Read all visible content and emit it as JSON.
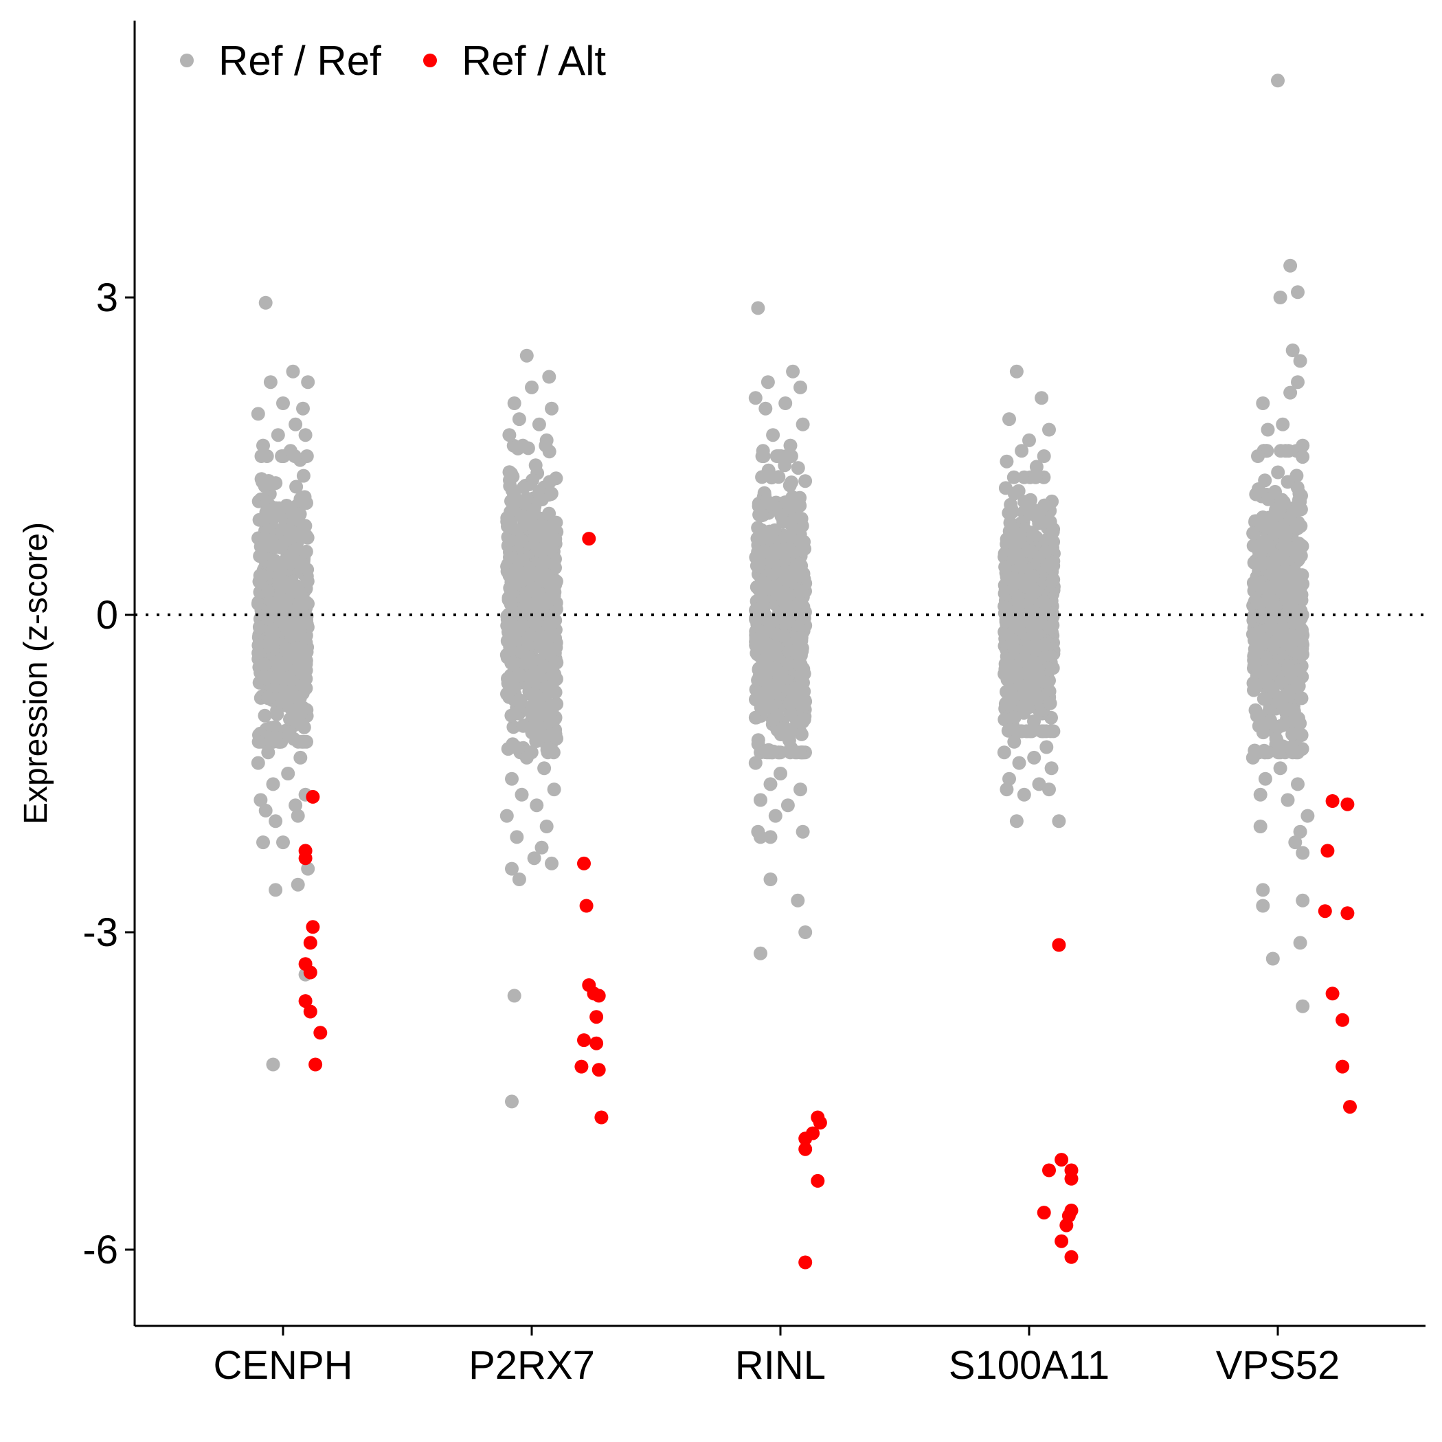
{
  "chart_data": {
    "type": "scatter",
    "subtype": "jittered strip plot",
    "title": "",
    "xlabel": "",
    "ylabel": "Expression (z-score)",
    "categories": [
      "CENPH",
      "P2RX7",
      "RINL",
      "S100A11",
      "VPS52"
    ],
    "ylim": [
      -6.6,
      5.7
    ],
    "yticks": [
      3,
      0,
      -3,
      -6
    ],
    "ytick_labels": [
      "3",
      "0",
      "-3",
      "-6"
    ],
    "reference_line": {
      "y": 0,
      "style": "dotted"
    },
    "grid": false,
    "legend": {
      "position": "top-left",
      "orientation": "horizontal"
    },
    "series": [
      {
        "name": "Ref / Ref",
        "color": "#b3b3b3",
        "groups": [
          {
            "category": "CENPH",
            "bulk": {
              "n": 600,
              "sd": 0.62,
              "min": -1.2,
              "max": 1.5
            },
            "points": [
              {
                "x": -0.07,
                "y": 2.95
              },
              {
                "x": 0.04,
                "y": 2.3
              },
              {
                "x": 0.1,
                "y": 2.2
              },
              {
                "x": -0.05,
                "y": 2.2
              },
              {
                "x": 0.0,
                "y": 2.0
              },
              {
                "x": 0.08,
                "y": 1.95
              },
              {
                "x": -0.1,
                "y": 1.9
              },
              {
                "x": 0.05,
                "y": 1.8
              },
              {
                "x": -0.02,
                "y": 1.7
              },
              {
                "x": 0.09,
                "y": 1.7
              },
              {
                "x": -0.08,
                "y": 1.6
              },
              {
                "x": 0.03,
                "y": 1.55
              },
              {
                "x": -0.06,
                "y": -1.3
              },
              {
                "x": 0.07,
                "y": -1.35
              },
              {
                "x": -0.1,
                "y": -1.4
              },
              {
                "x": 0.02,
                "y": -1.5
              },
              {
                "x": -0.04,
                "y": -1.6
              },
              {
                "x": 0.09,
                "y": -1.7
              },
              {
                "x": -0.09,
                "y": -1.75
              },
              {
                "x": 0.05,
                "y": -1.8
              },
              {
                "x": -0.07,
                "y": -1.85
              },
              {
                "x": 0.06,
                "y": -1.9
              },
              {
                "x": -0.03,
                "y": -1.95
              },
              {
                "x": 0.0,
                "y": -2.15
              },
              {
                "x": -0.08,
                "y": -2.15
              },
              {
                "x": -0.03,
                "y": -2.6
              },
              {
                "x": 0.1,
                "y": -2.4
              },
              {
                "x": 0.06,
                "y": -2.55
              },
              {
                "x": 0.09,
                "y": -3.4
              },
              {
                "x": -0.04,
                "y": -4.25
              }
            ]
          },
          {
            "category": "P2RX7",
            "bulk": {
              "n": 600,
              "sd": 0.66,
              "min": -1.3,
              "max": 1.6
            },
            "points": [
              {
                "x": -0.02,
                "y": 2.45
              },
              {
                "x": 0.07,
                "y": 2.25
              },
              {
                "x": 0.0,
                "y": 2.15
              },
              {
                "x": -0.07,
                "y": 2.0
              },
              {
                "x": 0.08,
                "y": 1.95
              },
              {
                "x": -0.05,
                "y": 1.85
              },
              {
                "x": 0.03,
                "y": 1.8
              },
              {
                "x": -0.09,
                "y": 1.7
              },
              {
                "x": 0.06,
                "y": 1.65
              },
              {
                "x": -0.02,
                "y": -1.35
              },
              {
                "x": 0.05,
                "y": -1.45
              },
              {
                "x": -0.08,
                "y": -1.55
              },
              {
                "x": 0.09,
                "y": -1.65
              },
              {
                "x": -0.04,
                "y": -1.7
              },
              {
                "x": 0.02,
                "y": -1.8
              },
              {
                "x": -0.1,
                "y": -1.9
              },
              {
                "x": 0.06,
                "y": -2.0
              },
              {
                "x": -0.06,
                "y": -2.1
              },
              {
                "x": 0.04,
                "y": -2.2
              },
              {
                "x": -0.08,
                "y": -2.4
              },
              {
                "x": 0.01,
                "y": -2.3
              },
              {
                "x": 0.08,
                "y": -2.35
              },
              {
                "x": -0.05,
                "y": -2.5
              },
              {
                "x": -0.07,
                "y": -3.6
              },
              {
                "x": -0.08,
                "y": -4.6
              }
            ]
          },
          {
            "category": "RINL",
            "bulk": {
              "n": 600,
              "sd": 0.63,
              "min": -1.3,
              "max": 1.5
            },
            "points": [
              {
                "x": -0.09,
                "y": 2.9
              },
              {
                "x": 0.05,
                "y": 2.3
              },
              {
                "x": 0.08,
                "y": 2.15
              },
              {
                "x": -0.05,
                "y": 2.2
              },
              {
                "x": -0.1,
                "y": 2.05
              },
              {
                "x": 0.02,
                "y": 2.0
              },
              {
                "x": -0.06,
                "y": 1.95
              },
              {
                "x": 0.09,
                "y": 1.8
              },
              {
                "x": -0.03,
                "y": 1.7
              },
              {
                "x": 0.04,
                "y": 1.6
              },
              {
                "x": -0.07,
                "y": 1.55
              },
              {
                "x": 0.06,
                "y": -1.3
              },
              {
                "x": -0.1,
                "y": -1.4
              },
              {
                "x": 0.0,
                "y": -1.5
              },
              {
                "x": -0.04,
                "y": -1.6
              },
              {
                "x": 0.08,
                "y": -1.65
              },
              {
                "x": -0.08,
                "y": -1.75
              },
              {
                "x": 0.03,
                "y": -1.8
              },
              {
                "x": -0.02,
                "y": -1.9
              },
              {
                "x": -0.09,
                "y": -2.05
              },
              {
                "x": 0.09,
                "y": -2.05
              },
              {
                "x": -0.04,
                "y": -2.1
              },
              {
                "x": -0.08,
                "y": -2.1
              },
              {
                "x": -0.04,
                "y": -2.5
              },
              {
                "x": 0.07,
                "y": -2.7
              },
              {
                "x": 0.1,
                "y": -3.0
              },
              {
                "x": -0.08,
                "y": -3.2
              }
            ]
          },
          {
            "category": "S100A11",
            "bulk": {
              "n": 600,
              "sd": 0.52,
              "min": -1.1,
              "max": 1.3
            },
            "points": [
              {
                "x": -0.05,
                "y": 2.3
              },
              {
                "x": 0.05,
                "y": 2.05
              },
              {
                "x": -0.08,
                "y": 1.85
              },
              {
                "x": 0.08,
                "y": 1.75
              },
              {
                "x": 0.0,
                "y": 1.65
              },
              {
                "x": -0.03,
                "y": 1.55
              },
              {
                "x": 0.06,
                "y": 1.5
              },
              {
                "x": -0.09,
                "y": 1.45
              },
              {
                "x": 0.03,
                "y": 1.4
              },
              {
                "x": -0.06,
                "y": -1.2
              },
              {
                "x": 0.07,
                "y": -1.25
              },
              {
                "x": -0.1,
                "y": -1.3
              },
              {
                "x": 0.02,
                "y": -1.35
              },
              {
                "x": -0.04,
                "y": -1.4
              },
              {
                "x": 0.09,
                "y": -1.45
              },
              {
                "x": -0.08,
                "y": -1.55
              },
              {
                "x": 0.04,
                "y": -1.6
              },
              {
                "x": -0.02,
                "y": -1.7
              },
              {
                "x": -0.09,
                "y": -1.65
              },
              {
                "x": 0.08,
                "y": -1.65
              },
              {
                "x": -0.05,
                "y": -1.95
              },
              {
                "x": 0.12,
                "y": -1.95
              }
            ]
          },
          {
            "category": "VPS52",
            "bulk": {
              "n": 600,
              "sd": 0.64,
              "min": -1.3,
              "max": 1.55
            },
            "points": [
              {
                "x": 0.0,
                "y": 5.05
              },
              {
                "x": 0.05,
                "y": 3.3
              },
              {
                "x": 0.08,
                "y": 3.05
              },
              {
                "x": 0.01,
                "y": 3.0
              },
              {
                "x": 0.06,
                "y": 2.5
              },
              {
                "x": 0.09,
                "y": 2.4
              },
              {
                "x": 0.08,
                "y": 2.2
              },
              {
                "x": 0.05,
                "y": 2.1
              },
              {
                "x": -0.06,
                "y": 2.0
              },
              {
                "x": 0.02,
                "y": 1.8
              },
              {
                "x": -0.04,
                "y": 1.75
              },
              {
                "x": 0.1,
                "y": 1.6
              },
              {
                "x": -0.08,
                "y": 1.5
              },
              {
                "x": 0.06,
                "y": -1.3
              },
              {
                "x": -0.1,
                "y": -1.35
              },
              {
                "x": 0.01,
                "y": -1.45
              },
              {
                "x": -0.05,
                "y": -1.55
              },
              {
                "x": 0.08,
                "y": -1.6
              },
              {
                "x": -0.07,
                "y": -1.7
              },
              {
                "x": 0.04,
                "y": -1.75
              },
              {
                "x": 0.12,
                "y": -1.9
              },
              {
                "x": 0.09,
                "y": -2.05
              },
              {
                "x": -0.07,
                "y": -2.0
              },
              {
                "x": 0.07,
                "y": -2.15
              },
              {
                "x": 0.1,
                "y": -2.25
              },
              {
                "x": -0.06,
                "y": -2.6
              },
              {
                "x": 0.1,
                "y": -2.7
              },
              {
                "x": -0.06,
                "y": -2.75
              },
              {
                "x": 0.09,
                "y": -3.1
              },
              {
                "x": -0.02,
                "y": -3.25
              },
              {
                "x": 0.1,
                "y": -3.7
              }
            ]
          }
        ]
      },
      {
        "name": "Ref / Alt",
        "color": "#ff0000",
        "groups": [
          {
            "category": "CENPH",
            "points": [
              {
                "x": 0.12,
                "y": -1.72
              },
              {
                "x": 0.09,
                "y": -2.23
              },
              {
                "x": 0.09,
                "y": -2.3
              },
              {
                "x": 0.12,
                "y": -2.95
              },
              {
                "x": 0.11,
                "y": -3.1
              },
              {
                "x": 0.09,
                "y": -3.3
              },
              {
                "x": 0.11,
                "y": -3.38
              },
              {
                "x": 0.09,
                "y": -3.65
              },
              {
                "x": 0.11,
                "y": -3.75
              },
              {
                "x": 0.15,
                "y": -3.95
              },
              {
                "x": 0.13,
                "y": -4.25
              }
            ]
          },
          {
            "category": "P2RX7",
            "points": [
              {
                "x": 0.23,
                "y": 0.72
              },
              {
                "x": 0.21,
                "y": -2.35
              },
              {
                "x": 0.22,
                "y": -2.75
              },
              {
                "x": 0.23,
                "y": -3.5
              },
              {
                "x": 0.25,
                "y": -3.58
              },
              {
                "x": 0.27,
                "y": -3.6
              },
              {
                "x": 0.26,
                "y": -3.8
              },
              {
                "x": 0.21,
                "y": -4.02
              },
              {
                "x": 0.26,
                "y": -4.05
              },
              {
                "x": 0.2,
                "y": -4.27
              },
              {
                "x": 0.27,
                "y": -4.3
              },
              {
                "x": 0.28,
                "y": -4.75
              }
            ]
          },
          {
            "category": "RINL",
            "points": [
              {
                "x": 0.15,
                "y": -4.75
              },
              {
                "x": 0.16,
                "y": -4.8
              },
              {
                "x": 0.13,
                "y": -4.9
              },
              {
                "x": 0.1,
                "y": -4.95
              },
              {
                "x": 0.1,
                "y": -5.05
              },
              {
                "x": 0.15,
                "y": -5.35
              },
              {
                "x": 0.1,
                "y": -6.12
              }
            ]
          },
          {
            "category": "S100A11",
            "points": [
              {
                "x": 0.12,
                "y": -3.12
              },
              {
                "x": 0.13,
                "y": -5.15
              },
              {
                "x": 0.08,
                "y": -5.25
              },
              {
                "x": 0.17,
                "y": -5.25
              },
              {
                "x": 0.17,
                "y": -5.33
              },
              {
                "x": 0.06,
                "y": -5.65
              },
              {
                "x": 0.17,
                "y": -5.63
              },
              {
                "x": 0.16,
                "y": -5.68
              },
              {
                "x": 0.15,
                "y": -5.77
              },
              {
                "x": 0.13,
                "y": -5.92
              },
              {
                "x": 0.17,
                "y": -6.07
              }
            ]
          },
          {
            "category": "VPS52",
            "points": [
              {
                "x": 0.22,
                "y": -1.76
              },
              {
                "x": 0.28,
                "y": -1.79
              },
              {
                "x": 0.2,
                "y": -2.23
              },
              {
                "x": 0.19,
                "y": -2.8
              },
              {
                "x": 0.28,
                "y": -2.82
              },
              {
                "x": 0.22,
                "y": -3.58
              },
              {
                "x": 0.26,
                "y": -3.83
              },
              {
                "x": 0.26,
                "y": -4.27
              },
              {
                "x": 0.29,
                "y": -4.65
              }
            ]
          }
        ]
      }
    ]
  }
}
